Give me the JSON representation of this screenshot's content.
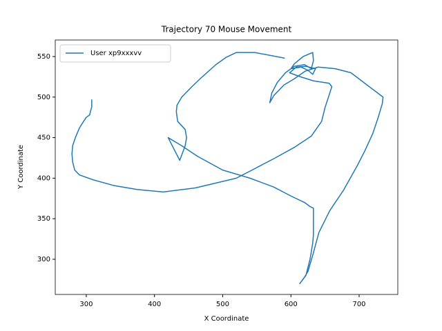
{
  "chart_data": {
    "type": "line",
    "title": "Trajectory 70 Mouse Movement",
    "x_label": "X Coordinate",
    "y_label": "Y Coordinate",
    "legend": "upper left",
    "xlim": [
      254.5,
      756.7
    ],
    "ylim": [
      256.6,
      570.4
    ],
    "xticks": [
      300,
      400,
      500,
      600,
      700
    ],
    "yticks": [
      300,
      350,
      400,
      450,
      500,
      550
    ],
    "series": [
      {
        "name": "User xp9xxxvv",
        "color": "#1f77b4",
        "x": [
          308,
          308,
          306,
          305,
          300,
          296,
          290,
          284,
          280,
          279,
          280,
          283,
          290,
          310,
          340,
          375,
          413,
          460,
          520,
          543,
          577,
          605,
          630,
          645,
          650,
          657,
          660,
          656,
          633,
          614,
          598,
          608,
          622,
          636,
          632,
          625,
          615,
          600,
          605,
          618,
          632,
          633,
          630,
          620,
          605,
          592,
          580,
          572,
          569,
          575,
          590,
          604,
          621,
          640,
          665,
          688,
          735,
          734,
          728,
          720,
          708,
          697,
          677,
          657,
          641,
          632,
          625,
          620,
          613,
          622,
          628,
          632,
          633,
          633,
          628,
          620,
          600,
          575,
          540,
          500,
          463,
          440,
          420,
          437,
          445,
          447,
          445,
          434,
          432,
          433,
          440,
          455,
          470,
          490,
          505,
          520,
          531,
          547,
          591
        ],
        "values": [
          497,
          488,
          482,
          478,
          475,
          470,
          462,
          450,
          440,
          430,
          420,
          410,
          404,
          398,
          391,
          386,
          383,
          388,
          400,
          410,
          425,
          438,
          452,
          470,
          487,
          505,
          513,
          517,
          520,
          525,
          530,
          537,
          538,
          535,
          528,
          533,
          537,
          535,
          541,
          550,
          555,
          545,
          535,
          540,
          538,
          530,
          518,
          505,
          493,
          502,
          515,
          522,
          532,
          537,
          535,
          530,
          500,
          492,
          475,
          455,
          433,
          415,
          385,
          360,
          333,
          305,
          285,
          278,
          270,
          280,
          300,
          320,
          330,
          363,
          365,
          370,
          378,
          389,
          400,
          410,
          427,
          440,
          450,
          422,
          440,
          450,
          460,
          470,
          482,
          490,
          500,
          513,
          525,
          540,
          549,
          555,
          555,
          555,
          548
        ]
      }
    ]
  }
}
